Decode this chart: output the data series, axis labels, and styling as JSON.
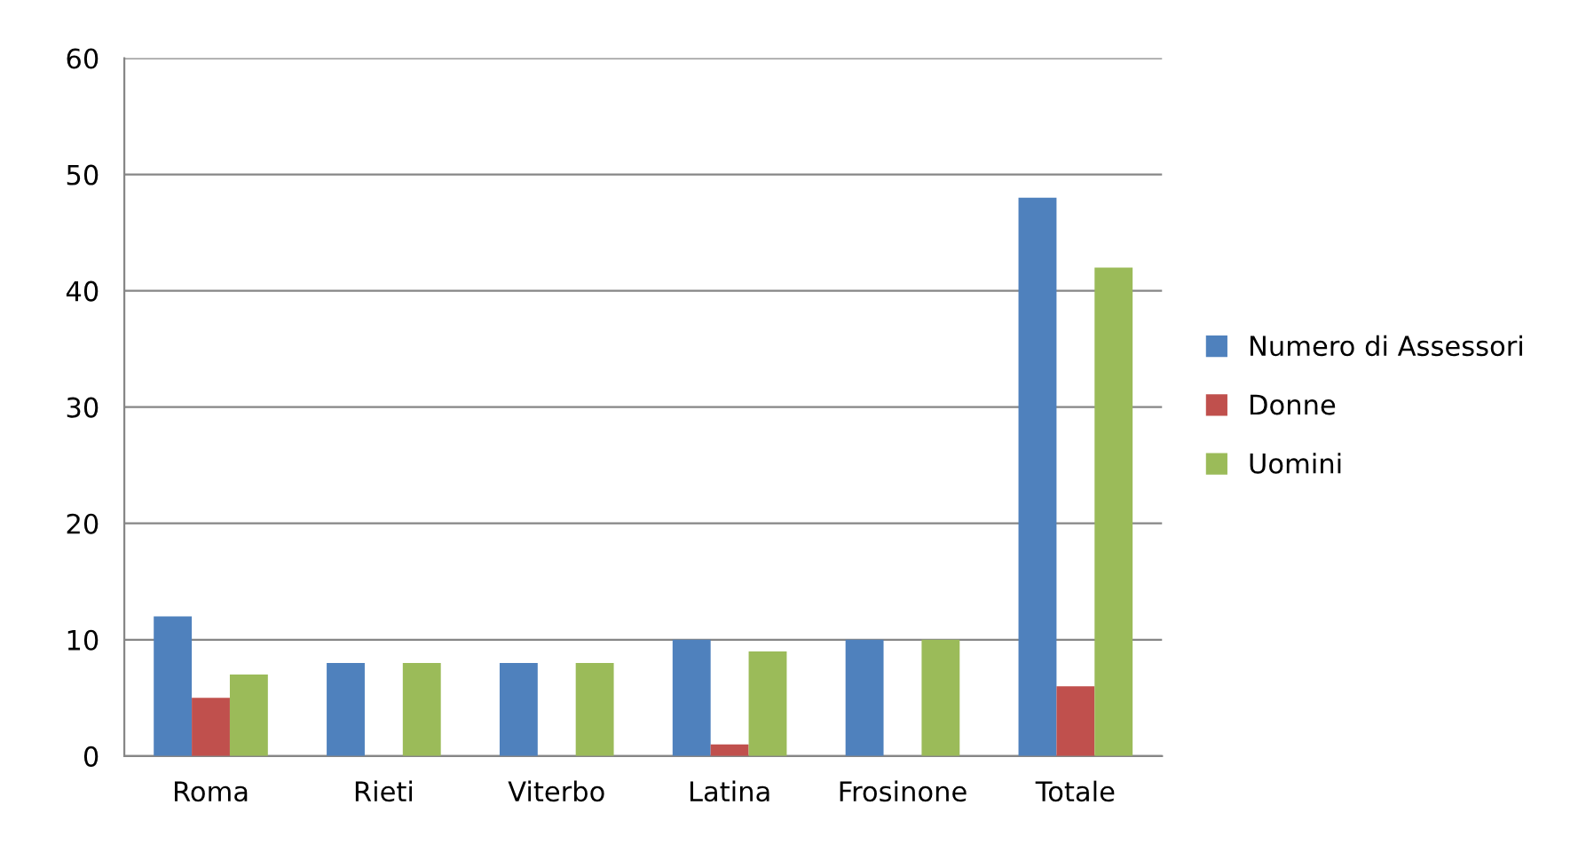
{
  "chart_data": {
    "type": "bar",
    "categories": [
      "Roma",
      "Rieti",
      "Viterbo",
      "Latina",
      "Frosinone",
      "Totale"
    ],
    "series": [
      {
        "name": "Numero di Assessori",
        "color": "#4f81bd",
        "values": [
          12,
          8,
          8,
          10,
          10,
          48
        ]
      },
      {
        "name": "Donne",
        "color": "#c0504d",
        "values": [
          5,
          0,
          0,
          1,
          0,
          6
        ]
      },
      {
        "name": "Uomini",
        "color": "#9bbb59",
        "values": [
          7,
          8,
          8,
          9,
          10,
          42
        ]
      }
    ],
    "ylim": [
      0,
      60
    ],
    "yticks": [
      0,
      10,
      20,
      30,
      40,
      50,
      60
    ],
    "grid": "y",
    "legend": "right"
  }
}
